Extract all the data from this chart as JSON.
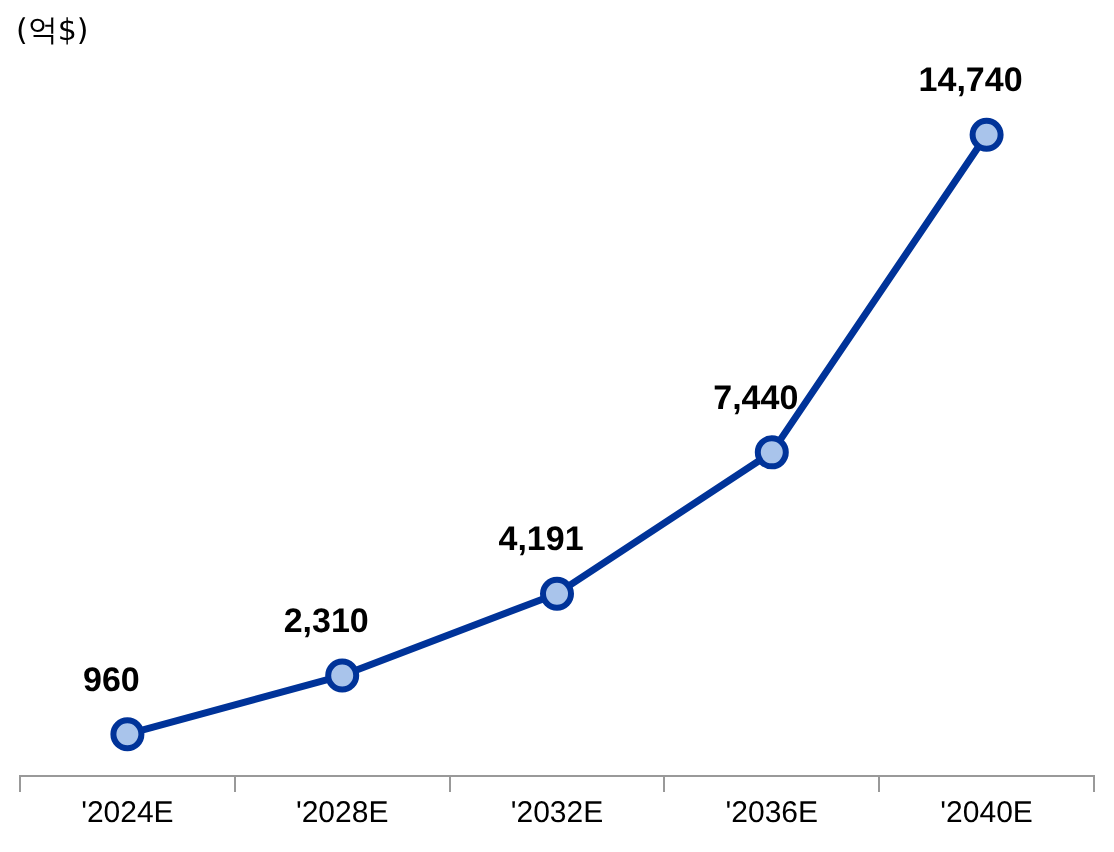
{
  "chart_data": {
    "type": "line",
    "ylabel": "(억$)",
    "categories": [
      "'2024E",
      "'2028E",
      "'2032E",
      "'2036E",
      "'2040E"
    ],
    "series": [
      {
        "color": "#003399",
        "values": [
          960,
          2310,
          4191,
          7440,
          14740
        ],
        "value_labels": [
          "960",
          "2,310",
          "4,191",
          "7,440",
          "14,740"
        ]
      }
    ],
    "tick_labels": "x",
    "marker": "circle",
    "line_style": "solid",
    "legend": false,
    "grid": false
  }
}
